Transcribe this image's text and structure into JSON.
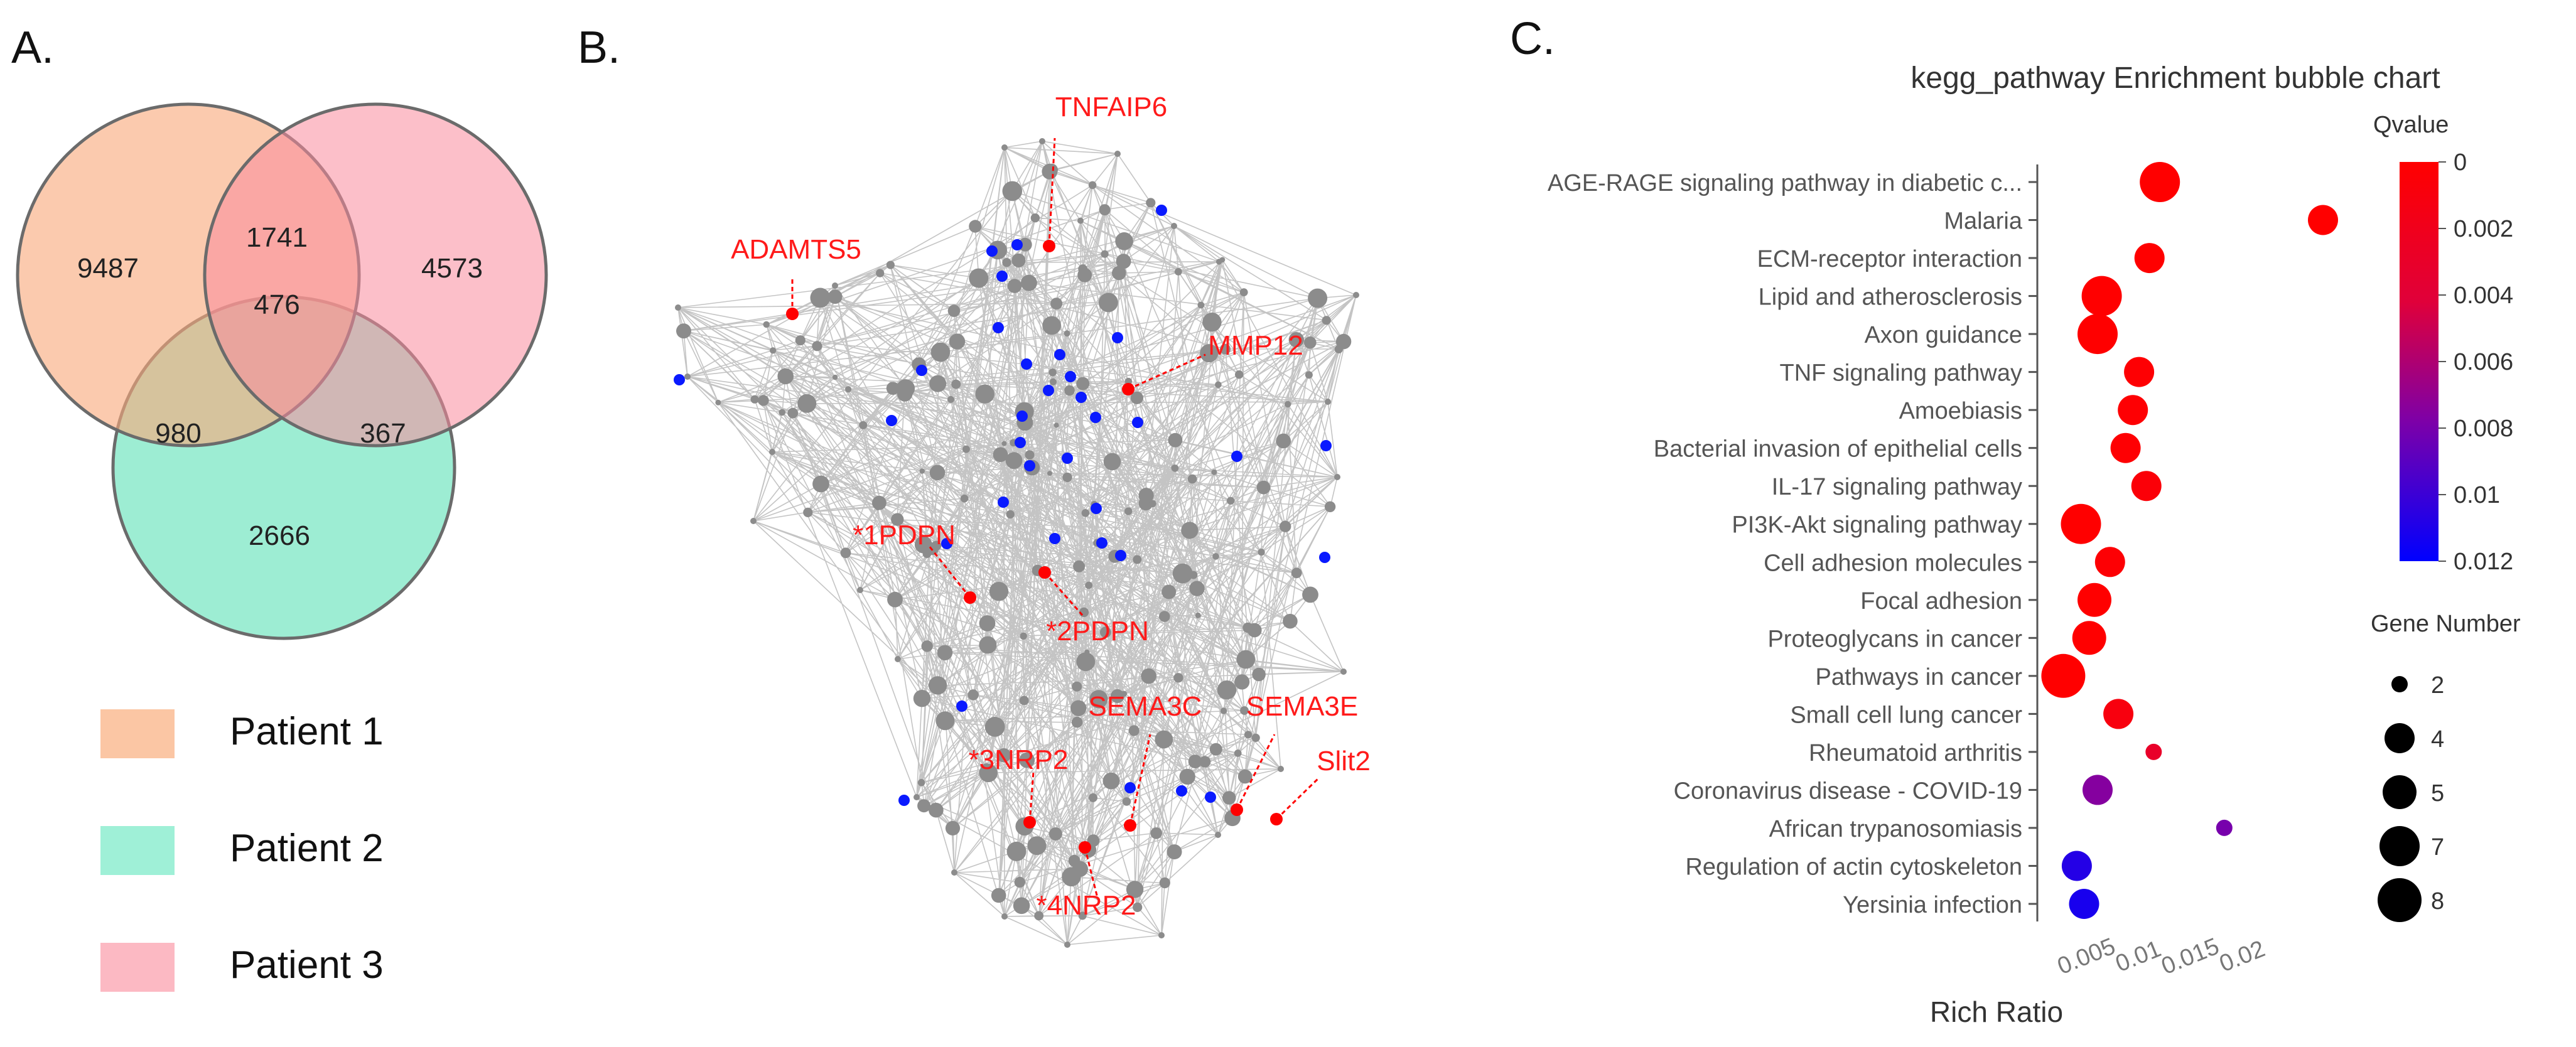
{
  "panels": {
    "a": {
      "label": "A.",
      "regions": {
        "p1_only": "9487",
        "p3_only": "4573",
        "p2_only": "2666",
        "p1_p3": "1741",
        "p1_p2": "980",
        "p2_p3": "367",
        "all": "476"
      },
      "legend": [
        {
          "label": "Patient 1",
          "color": "#fbc6a4"
        },
        {
          "label": "Patient 2",
          "color": "#9ff0d7"
        },
        {
          "label": "Patient 3",
          "color": "#fcb9c3"
        }
      ],
      "colors": {
        "p1": "#f8a97c",
        "p2": "#56e0b4",
        "p3": "#f98a9c",
        "stroke": "#6b6b6b"
      }
    },
    "b": {
      "label": "B.",
      "labels": [
        "TNFAIP6",
        "ADAMTS5",
        "MMP12",
        "*1PDPN",
        "*2PDPN",
        "SEMA3C",
        "SEMA3E",
        "*3NRP2",
        "Slit2",
        "*4NRP2"
      ],
      "colors": {
        "edge": "#b5b5b5",
        "node": "#8c8c8c",
        "highlight": "#ff0000",
        "label": "#ff1a1a",
        "secondary": "#0a1aff"
      }
    },
    "c": {
      "label": "C."
    }
  },
  "chart_data": {
    "type": "scatter",
    "title": "kegg_pathway Enrichment bubble chart",
    "xlabel": "Rich Ratio",
    "x_ticks": [
      "0.005",
      "0.01",
      "0.015",
      "0.02"
    ],
    "x_tick_values": [
      0.005,
      0.01,
      0.015,
      0.02
    ],
    "xlim": [
      0.0,
      0.0275
    ],
    "categories": [
      "AGE-RAGE signaling pathway in diabetic c...",
      "Malaria",
      "ECM-receptor interaction",
      "Lipid and atherosclerosis",
      "Axon guidance",
      "TNF signaling pathway",
      "Amoebiasis",
      "Bacterial invasion of epithelial cells",
      "IL-17 signaling pathway",
      "PI3K-Akt signaling pathway",
      "Cell adhesion molecules",
      "Focal adhesion",
      "Proteoglycans in cancer",
      "Pathways in cancer",
      "Small cell lung cancer",
      "Rheumatoid arthritis",
      "Coronavirus disease - COVID-19",
      "African trypanosomiasis",
      "Regulation of actin cytoskeleton",
      "Yersinia infection"
    ],
    "points": [
      {
        "rich_ratio": 0.0118,
        "gene_number": 7,
        "qvalue": 0.0
      },
      {
        "rich_ratio": 0.0275,
        "gene_number": 4,
        "qvalue": 0.0
      },
      {
        "rich_ratio": 0.0108,
        "gene_number": 4,
        "qvalue": 0.0
      },
      {
        "rich_ratio": 0.0062,
        "gene_number": 7,
        "qvalue": 0.0
      },
      {
        "rich_ratio": 0.0058,
        "gene_number": 7,
        "qvalue": 0.0
      },
      {
        "rich_ratio": 0.0098,
        "gene_number": 4,
        "qvalue": 0.0002
      },
      {
        "rich_ratio": 0.0092,
        "gene_number": 4,
        "qvalue": 0.0002
      },
      {
        "rich_ratio": 0.0085,
        "gene_number": 4,
        "qvalue": 0.0002
      },
      {
        "rich_ratio": 0.0105,
        "gene_number": 4,
        "qvalue": 0.0006
      },
      {
        "rich_ratio": 0.0042,
        "gene_number": 7,
        "qvalue": 0.0
      },
      {
        "rich_ratio": 0.007,
        "gene_number": 4,
        "qvalue": 0.0003
      },
      {
        "rich_ratio": 0.0055,
        "gene_number": 5,
        "qvalue": 0.0
      },
      {
        "rich_ratio": 0.005,
        "gene_number": 5,
        "qvalue": 0.0
      },
      {
        "rich_ratio": 0.0025,
        "gene_number": 8,
        "qvalue": 0.0
      },
      {
        "rich_ratio": 0.0078,
        "gene_number": 4,
        "qvalue": 0.001
      },
      {
        "rich_ratio": 0.0112,
        "gene_number": 2,
        "qvalue": 0.003
      },
      {
        "rich_ratio": 0.0058,
        "gene_number": 4,
        "qvalue": 0.0075
      },
      {
        "rich_ratio": 0.018,
        "gene_number": 2,
        "qvalue": 0.008
      },
      {
        "rich_ratio": 0.0038,
        "gene_number": 4,
        "qvalue": 0.0108
      },
      {
        "rich_ratio": 0.0045,
        "gene_number": 4,
        "qvalue": 0.0112
      }
    ],
    "color_legend": {
      "title": "Qvalue",
      "range": [
        0,
        0.012
      ],
      "ticks": [
        "0",
        "0.002",
        "0.004",
        "0.006",
        "0.008",
        "0.01",
        "0.012"
      ],
      "low_color": "#ff0000",
      "high_color": "#0000ff"
    },
    "size_legend": {
      "title": "Gene Number",
      "entries": [
        2,
        4,
        5,
        7,
        8
      ],
      "labels": [
        "2",
        "4",
        "5",
        "7",
        "8"
      ]
    },
    "grid": false
  }
}
